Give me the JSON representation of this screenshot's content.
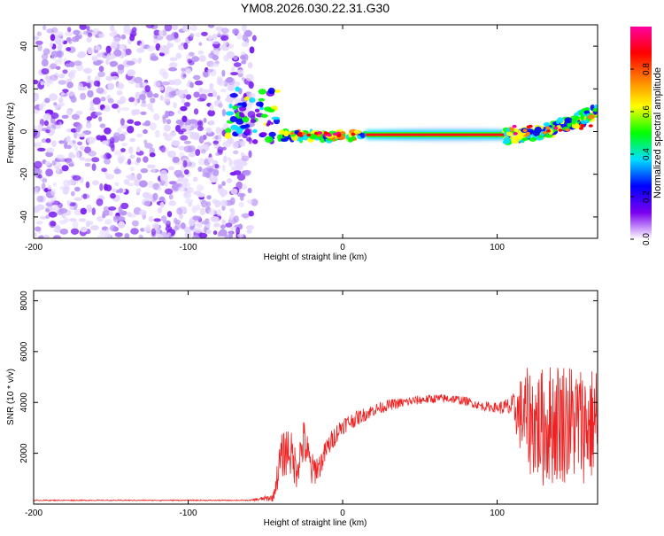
{
  "title": "YM08.2026.030.22.31.G30",
  "chart_data": [
    {
      "type": "heatmap",
      "title": "YM08.2026.030.22.31.G30",
      "xlabel": "Height of straight line (km)",
      "ylabel": "Frequency (Hz)",
      "xlim": [
        -200,
        165
      ],
      "ylim": [
        -50,
        50
      ],
      "xticks": [
        -200,
        -100,
        0,
        100
      ],
      "yticks": [
        -40,
        -20,
        0,
        20,
        40
      ],
      "regions": [
        {
          "name": "noise",
          "x": [
            -200,
            -57
          ],
          "y": [
            -50,
            50
          ],
          "level": 0.15
        },
        {
          "name": "scatter-left",
          "x": [
            -75,
            -40
          ],
          "y": [
            -5,
            20
          ],
          "level": 0.35
        },
        {
          "name": "band-near",
          "x": [
            -40,
            15
          ],
          "y": [
            -4,
            0
          ],
          "level": 0.5
        },
        {
          "name": "main-band",
          "x": [
            15,
            105
          ],
          "y": [
            -3,
            0
          ],
          "level": 0.9
        },
        {
          "name": "band-far",
          "x": [
            105,
            165
          ],
          "y": [
            -4,
            14
          ],
          "level": 0.45
        }
      ],
      "colorbar": {
        "label": "Normalized spectral amplitude",
        "range": [
          0.0,
          1.0
        ],
        "ticks": [
          "0.0",
          "0.2",
          "0.4",
          "0.6",
          "0.8"
        ],
        "colors": [
          "#ffffff",
          "#7a00f0",
          "#0000ff",
          "#00e0ff",
          "#00ff00",
          "#ffff00",
          "#ff8000",
          "#ff0000",
          "#ff00a0"
        ]
      }
    },
    {
      "type": "line",
      "title": "",
      "xlabel": "Height of straight line (km)",
      "ylabel": "SNR (10 * v/v)",
      "xlim": [
        -200,
        165
      ],
      "ylim": [
        0,
        8400
      ],
      "xticks": [
        -200,
        -100,
        0,
        100
      ],
      "yticks": [
        2000,
        4000,
        6000,
        8000
      ],
      "color": "#ee2222",
      "series": [
        {
          "name": "SNR",
          "x": [
            -200,
            -150,
            -100,
            -60,
            -45,
            -40,
            -35,
            -30,
            -25,
            -20,
            -15,
            -10,
            -5,
            0,
            10,
            20,
            30,
            40,
            50,
            60,
            70,
            80,
            90,
            100,
            110,
            115,
            120,
            130,
            140,
            150,
            160,
            165
          ],
          "values": [
            150,
            150,
            150,
            150,
            250,
            1800,
            2200,
            1400,
            2500,
            1300,
            1500,
            2200,
            2700,
            3100,
            3400,
            3700,
            3900,
            4000,
            4100,
            4150,
            4150,
            4050,
            3850,
            3800,
            3800,
            3500,
            3300,
            3000,
            3300,
            3200,
            3100,
            3300
          ],
          "noise_amp": [
            20,
            20,
            20,
            20,
            150,
            900,
            1000,
            800,
            900,
            700,
            500,
            450,
            400,
            350,
            300,
            250,
            220,
            200,
            180,
            180,
            180,
            170,
            170,
            200,
            500,
            1500,
            2100,
            2400,
            2500,
            2400,
            2300,
            2300
          ]
        }
      ]
    }
  ]
}
